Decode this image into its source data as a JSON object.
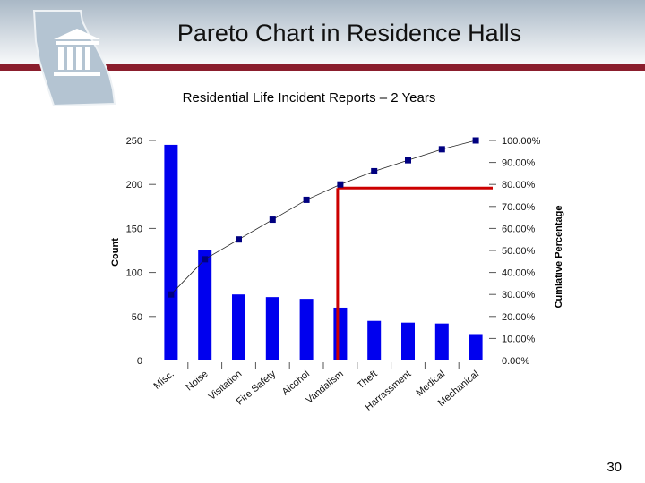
{
  "slide": {
    "title": "Pareto Chart in Residence Halls",
    "page_number": "30",
    "colors": {
      "band": "#a9b8c6",
      "accent_line": "#8b1e2d",
      "bar": "#0000ee",
      "marker": "#000080",
      "cutoff_line": "#cc0000"
    },
    "logo_icon": "georgia-state-building-icon"
  },
  "chart_data": {
    "type": "bar",
    "title": "Residential Life Incident Reports – 2 Years",
    "categories": [
      "Misc.",
      "Noise",
      "Visitation",
      "Fire Safety",
      "Alcohol",
      "Vandalism",
      "Theft",
      "Harrassment",
      "Medical",
      "Mechanical"
    ],
    "series": [
      {
        "type": "bar",
        "axis": "left",
        "values": [
          245,
          125,
          75,
          72,
          70,
          60,
          45,
          43,
          42,
          30
        ]
      },
      {
        "type": "line",
        "axis": "right",
        "values": [
          30,
          46,
          55,
          64,
          73,
          80,
          86,
          91,
          96,
          100
        ]
      }
    ],
    "ylabel": "Count",
    "y2label": "Cumlative Percentage",
    "ylim": [
      0,
      250
    ],
    "y2lim": [
      0,
      100
    ],
    "yticks": [
      "0",
      "50",
      "100",
      "150",
      "200",
      "250"
    ],
    "y2ticks": [
      "0.00%",
      "10.00%",
      "20.00%",
      "30.00%",
      "40.00%",
      "50.00%",
      "60.00%",
      "70.00%",
      "80.00%",
      "90.00%",
      "100.00%"
    ],
    "cutoff": {
      "category": "Vandalism",
      "percent": 80
    },
    "grid": false,
    "legend": "none"
  }
}
